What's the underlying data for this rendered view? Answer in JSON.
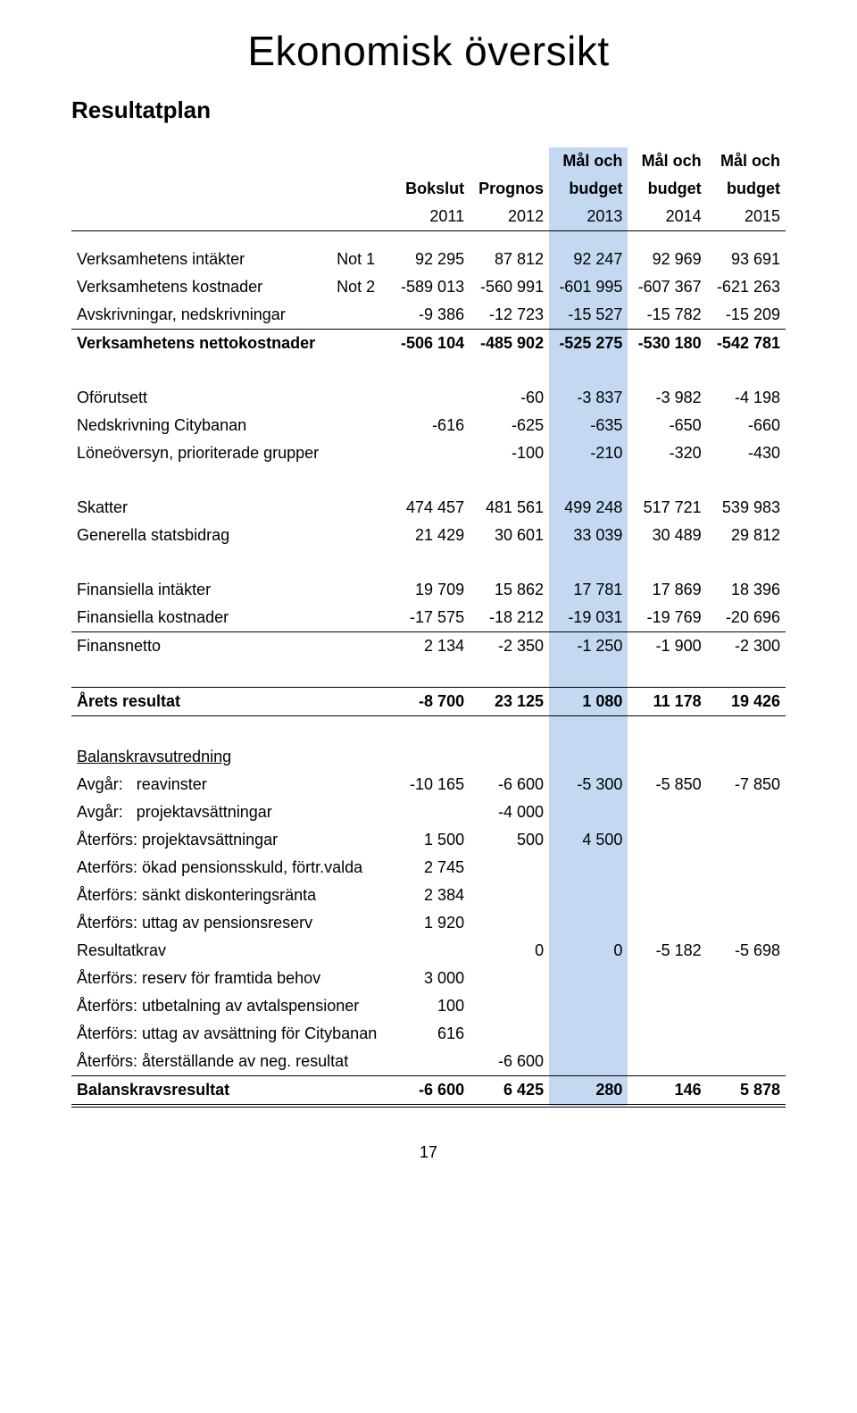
{
  "title": "Ekonomisk översikt",
  "subtitle": "Resultatplan",
  "page_number": "17",
  "colors": {
    "highlight_bg": "#c4d9f1",
    "text": "#000000",
    "bg": "#ffffff"
  },
  "font": {
    "body_family": "Arial",
    "title_family": "Arial Narrow",
    "title_size_pt": 34,
    "subtitle_size_pt": 20,
    "body_size_pt": 13.5
  },
  "header": {
    "top": [
      "",
      "",
      "",
      "",
      "Mål och",
      "Mål och",
      "Mål och"
    ],
    "mid": [
      "",
      "",
      "Bokslut",
      "Prognos",
      "budget",
      "budget",
      "budget"
    ],
    "years": [
      "",
      "",
      "2011",
      "2012",
      "2013",
      "2014",
      "2015"
    ]
  },
  "rows_a": [
    {
      "label": "Verksamhetens intäkter",
      "note": "Not 1",
      "v": [
        "92 295",
        "87 812",
        "92 247",
        "92 969",
        "93 691"
      ]
    },
    {
      "label": "Verksamhetens kostnader",
      "note": "Not 2",
      "v": [
        "-589 013",
        "-560 991",
        "-601 995",
        "-607 367",
        "-621 263"
      ]
    },
    {
      "label": "Avskrivningar, nedskrivningar",
      "note": "",
      "v": [
        "-9 386",
        "-12 723",
        "-15 527",
        "-15 782",
        "-15 209"
      ]
    }
  ],
  "row_netto": {
    "label": "Verksamhetens nettokostnader",
    "note": "",
    "v": [
      "-506 104",
      "-485 902",
      "-525 275",
      "-530 180",
      "-542 781"
    ]
  },
  "rows_b": [
    {
      "label": "Oförutsett",
      "note": "",
      "v": [
        "",
        "-60",
        "-3 837",
        "-3 982",
        "-4 198"
      ]
    },
    {
      "label": "Nedskrivning Citybanan",
      "note": "",
      "v": [
        "-616",
        "-625",
        "-635",
        "-650",
        "-660"
      ]
    },
    {
      "label": "Löneöversyn, prioriterade grupper",
      "note": "",
      "v": [
        "",
        "-100",
        "-210",
        "-320",
        "-430"
      ]
    }
  ],
  "rows_c": [
    {
      "label": "Skatter",
      "note": "",
      "v": [
        "474 457",
        "481 561",
        "499 248",
        "517 721",
        "539 983"
      ]
    },
    {
      "label": "Generella statsbidrag",
      "note": "",
      "v": [
        "21 429",
        "30 601",
        "33 039",
        "30 489",
        "29 812"
      ]
    }
  ],
  "rows_d": [
    {
      "label": "Finansiella intäkter",
      "note": "",
      "v": [
        "19 709",
        "15 862",
        "17 781",
        "17 869",
        "18 396"
      ]
    },
    {
      "label": "Finansiella kostnader",
      "note": "",
      "v": [
        "-17 575",
        "-18 212",
        "-19 031",
        "-19 769",
        "-20 696"
      ]
    }
  ],
  "row_finansnetto": {
    "label": "Finansnetto",
    "note": "",
    "v": [
      "2 134",
      "-2 350",
      "-1 250",
      "-1 900",
      "-2 300"
    ]
  },
  "row_result": {
    "label": "Årets resultat",
    "note": "",
    "v": [
      "-8 700",
      "23 125",
      "1 080",
      "11 178",
      "19 426"
    ]
  },
  "balans_header": "Balanskravsutredning",
  "rows_e": [
    {
      "label": "Avgår:",
      "sub": "reavinster",
      "v": [
        "-10 165",
        "-6 600",
        "-5 300",
        "-5 850",
        "-7 850"
      ]
    },
    {
      "label": "Avgår:",
      "sub": "projektavsättningar",
      "v": [
        "",
        "-4 000",
        "",
        "",
        ""
      ]
    },
    {
      "label": "Återförs:",
      "sub": "projektavsättningar",
      "v": [
        "1 500",
        "500",
        "4 500",
        "",
        ""
      ]
    },
    {
      "label": "Aterförs:",
      "sub": "ökad pensionsskuld, förtr.valda",
      "v": [
        "2 745",
        "",
        "",
        "",
        ""
      ]
    },
    {
      "label": "Återförs:",
      "sub": "sänkt diskonteringsränta",
      "v": [
        "2 384",
        "",
        "",
        "",
        ""
      ]
    },
    {
      "label": "Återförs:",
      "sub": "uttag av pensionsreserv",
      "v": [
        "1 920",
        "",
        "",
        "",
        ""
      ]
    }
  ],
  "row_resultatkrav": {
    "label": "Resultatkrav",
    "note": "",
    "v": [
      "",
      "0",
      "0",
      "-5 182",
      "-5 698"
    ]
  },
  "rows_f": [
    {
      "label": "Återförs:",
      "sub": "reserv för framtida behov",
      "v": [
        "3 000",
        "",
        "",
        "",
        ""
      ]
    },
    {
      "label": "Återförs:",
      "sub": "utbetalning av avtalspensioner",
      "v": [
        "100",
        "",
        "",
        "",
        ""
      ]
    },
    {
      "label": "Återförs:",
      "sub": "uttag av avsättning för Citybanan",
      "v": [
        "616",
        "",
        "",
        "",
        ""
      ]
    },
    {
      "label": "Återförs:",
      "sub": "återställande av neg. resultat",
      "v": [
        "",
        "-6 600",
        "",
        "",
        ""
      ]
    }
  ],
  "row_balans": {
    "label": "Balanskravsresultat",
    "note": "",
    "v": [
      "-6 600",
      "6 425",
      "280",
      "146",
      "5 878"
    ]
  }
}
